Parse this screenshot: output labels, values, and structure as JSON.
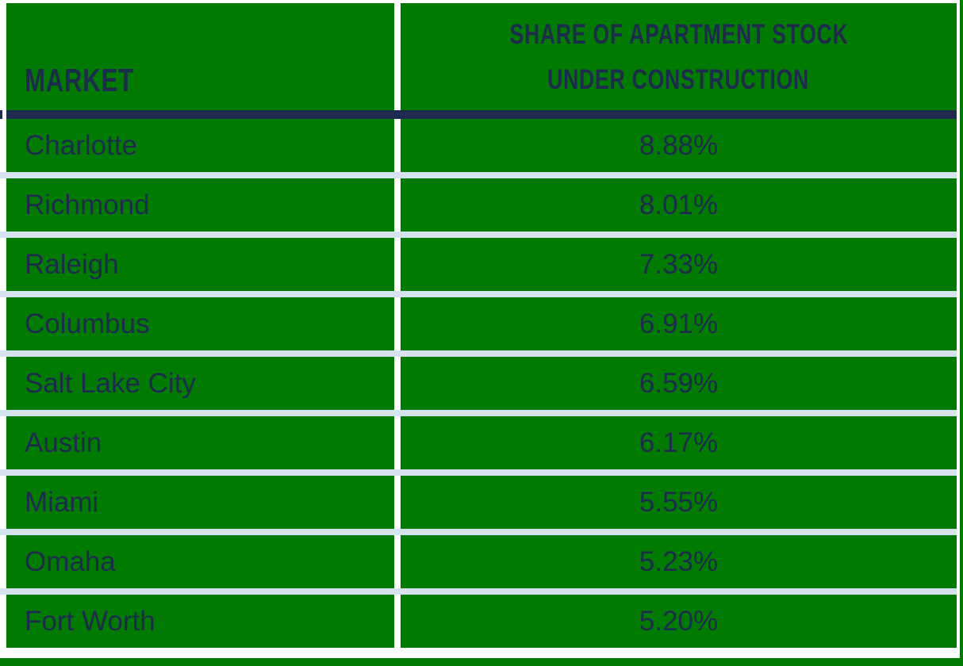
{
  "table": {
    "header": {
      "market_label": "MARKET",
      "share_label_line1": "SHARE OF APARTMENT STOCK",
      "share_label_line2": "UNDER CONSTRUCTION"
    },
    "rows": [
      {
        "market": "Charlotte",
        "share": "8.88%"
      },
      {
        "market": "Richmond",
        "share": "8.01%"
      },
      {
        "market": "Raleigh",
        "share": "7.33%"
      },
      {
        "market": "Columbus",
        "share": "6.91%"
      },
      {
        "market": "Salt Lake City",
        "share": "6.59%"
      },
      {
        "market": "Austin",
        "share": "6.17%"
      },
      {
        "market": "Miami",
        "share": "5.55%"
      },
      {
        "market": "Omaha",
        "share": "5.23%"
      },
      {
        "market": "Fort Worth",
        "share": "5.20%"
      }
    ]
  },
  "colors": {
    "cell_green": "#007B00",
    "text_navy": "#1F2B4E",
    "row_separator_blue": "#D6E2F0",
    "column_gap_white": "#FFFFFF"
  },
  "chart_data": {
    "type": "table",
    "title": "Share of Apartment Stock Under Construction by Market",
    "columns": [
      "Market",
      "Share of Apartment Stock Under Construction"
    ],
    "categories": [
      "Charlotte",
      "Richmond",
      "Raleigh",
      "Columbus",
      "Salt Lake City",
      "Austin",
      "Miami",
      "Omaha",
      "Fort Worth"
    ],
    "values": [
      8.88,
      8.01,
      7.33,
      6.91,
      6.59,
      6.17,
      5.55,
      5.23,
      5.2
    ],
    "value_unit": "percent",
    "sort_order": "descending"
  }
}
